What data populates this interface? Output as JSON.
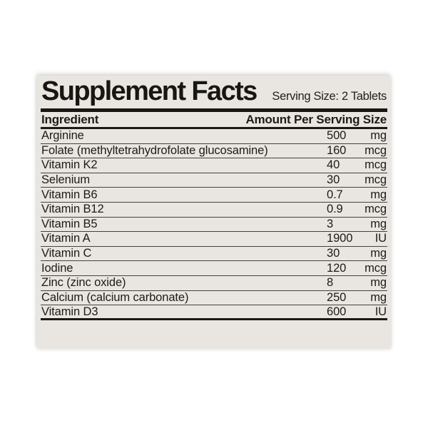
{
  "label": {
    "title": "Supplement Facts",
    "serving_size": "Serving Size: 2 Tablets",
    "columns": {
      "ingredient": "Ingredient",
      "amount": "Amount Per Serving Size"
    },
    "rows": [
      {
        "name": "Arginine",
        "value": "500",
        "unit": "mg"
      },
      {
        "name": "Folate (methyltetrahydrofolate glucosamine)",
        "value": "160",
        "unit": "mcg"
      },
      {
        "name": "Vitamin K2",
        "value": "40",
        "unit": "mcg"
      },
      {
        "name": "Selenium",
        "value": "30",
        "unit": "mcg"
      },
      {
        "name": "Vitamin B6",
        "value": "0.7",
        "unit": "mg"
      },
      {
        "name": "Vitamin B12",
        "value": "0.9",
        "unit": "mcg"
      },
      {
        "name": "Vitamin B5",
        "value": "3",
        "unit": "mg"
      },
      {
        "name": "Vitamin A",
        "value": "1900",
        "unit": "IU"
      },
      {
        "name": "Vitamin C",
        "value": "30",
        "unit": "mg"
      },
      {
        "name": "Iodine",
        "value": "120",
        "unit": "mcg"
      },
      {
        "name": "Zinc (zinc oxide)",
        "value": "8",
        "unit": "mg"
      },
      {
        "name": "Calcium (calcium carbonate)",
        "value": "250",
        "unit": "mg"
      },
      {
        "name": "Vitamin D3",
        "value": "600",
        "unit": "IU"
      }
    ],
    "colors": {
      "card_bg": "#e9e6e1",
      "text": "#1d1b18",
      "line": "#45423c"
    }
  }
}
